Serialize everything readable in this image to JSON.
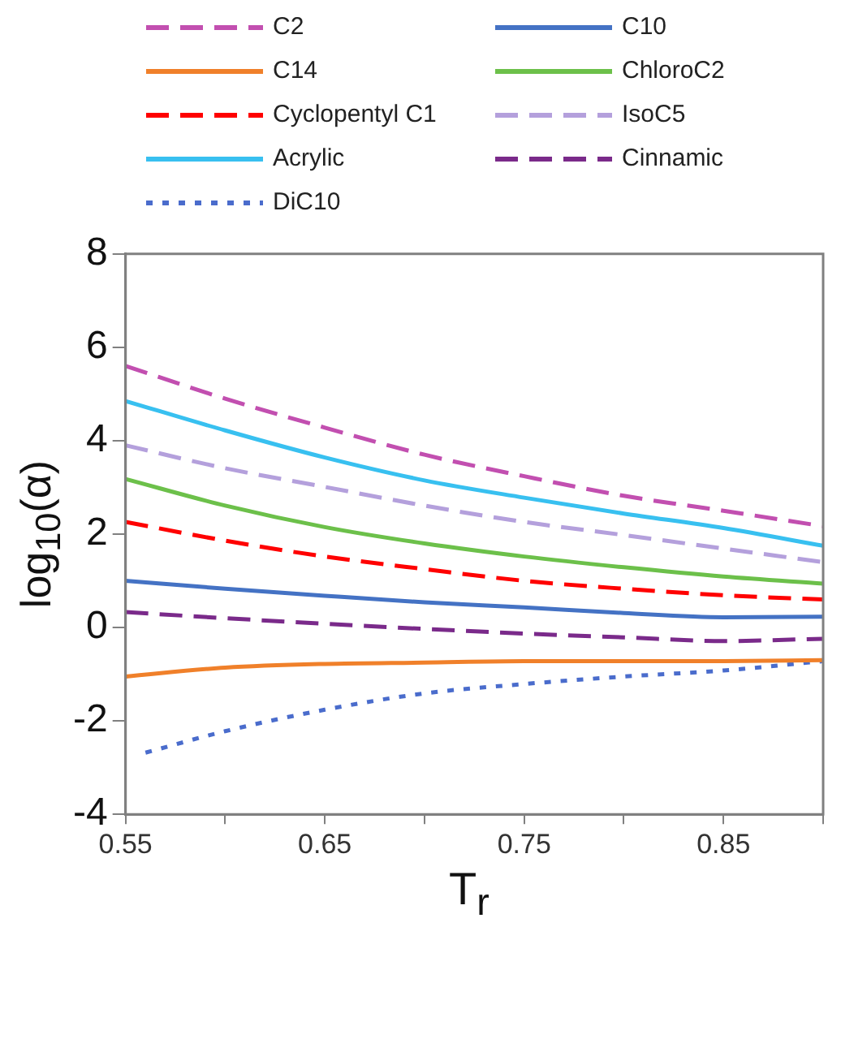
{
  "chart_data": {
    "type": "line",
    "xlabel": "T$_{r}$",
    "ylabel": "log$_{10}$(α)",
    "x": [
      0.55,
      0.6,
      0.65,
      0.7,
      0.75,
      0.8,
      0.85,
      0.9
    ],
    "xlim": [
      0.55,
      0.9
    ],
    "xticks": [
      0.55,
      {
        "value": 0.6,
        "label": null
      },
      0.65,
      {
        "value": 0.7,
        "label": null
      },
      0.75,
      {
        "value": 0.8,
        "label": null
      },
      0.85,
      {
        "value": 0.9,
        "label": null
      }
    ],
    "ylim": [
      -4,
      8
    ],
    "yticks": [
      -4,
      -2,
      0,
      2,
      4,
      6,
      8
    ],
    "grid": false,
    "legend": "top",
    "marker": "none",
    "series": [
      {
        "name": "C2",
        "color": "#c24fb0",
        "line_style": "dashed",
        "values": [
          5.6,
          4.9,
          4.28,
          3.7,
          3.24,
          2.82,
          2.5,
          2.17
        ]
      },
      {
        "name": "C10",
        "color": "#4472c4",
        "line_style": "solid",
        "values": [
          1.0,
          0.83,
          0.68,
          0.54,
          0.43,
          0.31,
          0.22,
          0.23
        ]
      },
      {
        "name": "C14",
        "color": "#f0802a",
        "line_style": "solid",
        "values": [
          -1.05,
          -0.86,
          -0.78,
          -0.75,
          -0.72,
          -0.72,
          -0.72,
          -0.7
        ]
      },
      {
        "name": "ChloroC2",
        "color": "#6cc04a",
        "line_style": "solid",
        "values": [
          3.18,
          2.61,
          2.15,
          1.8,
          1.52,
          1.29,
          1.09,
          0.94
        ]
      },
      {
        "name": "Cyclopentyl C1",
        "color": "#ff0000",
        "line_style": "dashed",
        "values": [
          2.26,
          1.86,
          1.52,
          1.25,
          1.0,
          0.83,
          0.69,
          0.6
        ]
      },
      {
        "name": "IsoC5",
        "color": "#b4a0dc",
        "line_style": "dashed",
        "values": [
          3.9,
          3.41,
          3.01,
          2.61,
          2.26,
          1.98,
          1.69,
          1.4
        ]
      },
      {
        "name": "Acrylic",
        "color": "#38c0f0",
        "line_style": "solid",
        "values": [
          4.85,
          4.22,
          3.64,
          3.15,
          2.78,
          2.44,
          2.13,
          1.75
        ]
      },
      {
        "name": "Cinnamic",
        "color": "#7a2a8a",
        "line_style": "dashed",
        "values": [
          0.33,
          0.2,
          0.08,
          -0.03,
          -0.13,
          -0.21,
          -0.29,
          -0.24
        ]
      },
      {
        "name": "DiC10",
        "color": "#4a6ccc",
        "line_style": "dotted",
        "x": [
          0.56,
          0.6,
          0.65,
          0.7,
          0.75,
          0.8,
          0.85,
          0.9
        ],
        "values": [
          -2.68,
          -2.22,
          -1.76,
          -1.41,
          -1.21,
          -1.05,
          -0.92,
          -0.72
        ]
      }
    ]
  }
}
